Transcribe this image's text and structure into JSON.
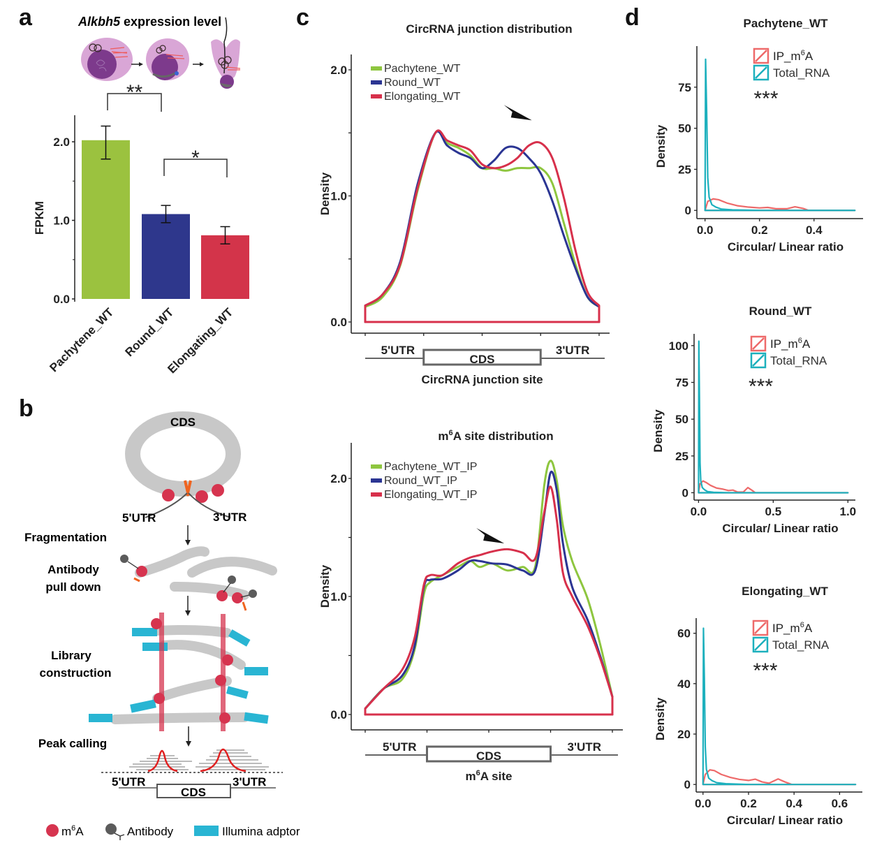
{
  "panels": {
    "a": {
      "label": "a",
      "title_italic": "Alkbh5",
      "title_rest": " expression level",
      "ylabel": "FPKM",
      "yticks": [
        "0.0",
        "1.0",
        "2.0"
      ],
      "significance": [
        {
          "from": 0,
          "to": 1,
          "mark": "**"
        },
        {
          "from": 1,
          "to": 2,
          "mark": "*"
        }
      ]
    },
    "b": {
      "label": "b",
      "circle_label": "CDS",
      "utr5": "5'UTR",
      "utr3": "3'UTR",
      "steps": [
        "Fragmentation",
        "Antibody",
        "pull down",
        "Library",
        "construction",
        "Peak calling"
      ],
      "bottom_utr5": "5'UTR",
      "bottom_cds": "CDS",
      "bottom_utr3": "3'UTR",
      "legend": {
        "m6a_prefix": "m",
        "m6a_sup": "6",
        "m6a_suffix": "A",
        "antibody": "Antibody",
        "adaptor": "Illumina adptor"
      },
      "colors": {
        "m6a": "#d6344f",
        "antibody": "#5b5b5b",
        "adaptor": "#29b5d3",
        "rna": "#c8c8c8",
        "peak": "#e02020"
      }
    },
    "c": {
      "label": "c"
    },
    "d": {
      "label": "d",
      "significance_mark": "***"
    }
  },
  "chart_data": [
    {
      "id": "a",
      "type": "bar",
      "title": "Alkbh5 expression level",
      "categories": [
        "Pachytene_WT",
        "Round_WT",
        "Elongating_WT"
      ],
      "values": [
        2.02,
        1.08,
        0.81
      ],
      "errors": [
        [
          1.78,
          2.2
        ],
        [
          0.97,
          1.19
        ],
        [
          0.7,
          0.92
        ]
      ],
      "colors": [
        "#9bc23f",
        "#2e378c",
        "#d3344a"
      ],
      "xlabel": "",
      "ylabel": "FPKM",
      "ylim": [
        0,
        2.3
      ],
      "yticks": [
        0,
        1,
        2
      ]
    },
    {
      "id": "c-top",
      "type": "line",
      "title": "CircRNA junction distribution",
      "xlabel": "CircRNA junction site",
      "ylabel": "Density",
      "ylim": [
        0,
        2.1
      ],
      "yticks": [
        0.0,
        0.5,
        1.0,
        1.5,
        2.0
      ],
      "ytick_labels": [
        "0.0",
        "",
        "1.0",
        "",
        "2.0"
      ],
      "xlim": [
        0,
        4
      ],
      "regions": {
        "utr5": "5'UTR",
        "cds": "CDS",
        "utr3": "3'UTR"
      },
      "arrow_at": [
        2.85,
        1.6
      ],
      "legend_position": "top-left",
      "x": [
        0,
        0.3,
        0.6,
        0.9,
        1.2,
        1.4,
        1.6,
        1.8,
        2.0,
        2.2,
        2.4,
        2.6,
        2.8,
        3.0,
        3.2,
        3.4,
        3.6,
        3.8,
        4.0
      ],
      "series": [
        {
          "name": "Pachytene_WT",
          "color": "#8ec63f",
          "values": [
            0.12,
            0.2,
            0.45,
            1.05,
            1.5,
            1.42,
            1.38,
            1.32,
            1.22,
            1.22,
            1.2,
            1.22,
            1.22,
            1.22,
            1.1,
            0.78,
            0.45,
            0.2,
            0.12
          ]
        },
        {
          "name": "Round_WT",
          "color": "#2b3593",
          "values": [
            0.13,
            0.22,
            0.48,
            1.1,
            1.5,
            1.4,
            1.34,
            1.3,
            1.22,
            1.28,
            1.38,
            1.38,
            1.3,
            1.18,
            0.96,
            0.68,
            0.42,
            0.2,
            0.12
          ]
        },
        {
          "name": "Elongating_WT",
          "color": "#d7304b",
          "values": [
            0.13,
            0.22,
            0.46,
            1.07,
            1.5,
            1.44,
            1.4,
            1.36,
            1.25,
            1.22,
            1.24,
            1.3,
            1.4,
            1.42,
            1.3,
            0.98,
            0.56,
            0.24,
            0.13
          ]
        }
      ]
    },
    {
      "id": "c-bottom",
      "type": "line",
      "title": "m6A site distribution",
      "title_prefix": "m",
      "title_sup": "6",
      "title_suffix": "A site distribution",
      "xlabel": "m6A site",
      "xlabel_prefix": "m",
      "xlabel_sup": "6",
      "xlabel_suffix": "A site",
      "ylabel": "Density",
      "ylim": [
        0,
        2.2
      ],
      "yticks": [
        0.0,
        0.5,
        1.0,
        1.5,
        2.0
      ],
      "ytick_labels": [
        "0.0",
        "",
        "1.0",
        "",
        "2.0"
      ],
      "xlim": [
        0,
        4
      ],
      "regions": {
        "utr5": "5'UTR",
        "cds": "CDS",
        "utr3": "3'UTR"
      },
      "arrow_at": [
        2.25,
        1.45
      ],
      "legend_position": "top-left",
      "x": [
        0,
        0.3,
        0.6,
        0.8,
        0.95,
        1.05,
        1.25,
        1.5,
        1.7,
        1.85,
        2.05,
        2.3,
        2.55,
        2.75,
        2.9,
        3.0,
        3.1,
        3.2,
        3.35,
        3.6,
        3.8,
        4.0
      ],
      "series": [
        {
          "name": "Pachytene_WT_IP",
          "color": "#8ec63f",
          "values": [
            0.05,
            0.22,
            0.3,
            0.55,
            1.02,
            1.12,
            1.18,
            1.25,
            1.3,
            1.25,
            1.28,
            1.22,
            1.25,
            1.25,
            1.95,
            2.15,
            1.98,
            1.6,
            1.3,
            0.98,
            0.6,
            0.15
          ]
        },
        {
          "name": "Round_WT_IP",
          "color": "#2b3593",
          "values": [
            0.05,
            0.22,
            0.33,
            0.58,
            1.08,
            1.14,
            1.15,
            1.22,
            1.3,
            1.3,
            1.28,
            1.27,
            1.22,
            1.22,
            1.7,
            2.05,
            1.9,
            1.45,
            1.08,
            0.8,
            0.5,
            0.15
          ]
        },
        {
          "name": "Elongating_WT_IP",
          "color": "#d7304b",
          "values": [
            0.05,
            0.22,
            0.38,
            0.65,
            1.1,
            1.18,
            1.18,
            1.28,
            1.33,
            1.35,
            1.38,
            1.4,
            1.37,
            1.32,
            1.72,
            1.93,
            1.65,
            1.2,
            1.0,
            0.75,
            0.48,
            0.15
          ]
        }
      ]
    },
    {
      "id": "d-pachytene",
      "type": "line",
      "title": "Pachytene_WT",
      "xlabel": "Circular/ Linear ratio",
      "ylabel": "Density",
      "xlim": [
        -0.03,
        0.58
      ],
      "ylim": [
        -5,
        100
      ],
      "xticks": [
        0.0,
        0.2,
        0.4
      ],
      "xtick_labels": [
        "0.0",
        "0.2",
        "0.4"
      ],
      "yticks": [
        0,
        25,
        50,
        75
      ],
      "ytick_labels": [
        "0",
        "25",
        "50",
        "75"
      ],
      "legend_position": "top-right",
      "significance": "***",
      "series": [
        {
          "name": "IP_m6A",
          "legend_prefix": "IP_m",
          "legend_sup": "6",
          "legend_suffix": "A",
          "color": "#ee6a6a",
          "x": [
            0.0,
            0.01,
            0.03,
            0.05,
            0.08,
            0.12,
            0.16,
            0.2,
            0.23,
            0.26,
            0.3,
            0.33,
            0.36,
            0.38,
            0.55
          ],
          "y": [
            0,
            5.5,
            7,
            6.5,
            4.5,
            2.8,
            2.0,
            1.5,
            1.8,
            1.0,
            1.0,
            2.2,
            1.2,
            0,
            0
          ]
        },
        {
          "name": "Total_RNA",
          "color": "#1cb0bd",
          "x": [
            0.0,
            0.002,
            0.006,
            0.01,
            0.015,
            0.025,
            0.04,
            0.06,
            0.1,
            0.2,
            0.55
          ],
          "y": [
            0,
            92,
            60,
            20,
            8,
            3.5,
            2,
            0.8,
            0.3,
            0,
            0
          ]
        }
      ]
    },
    {
      "id": "d-round",
      "type": "line",
      "title": "Round_WT",
      "xlabel": "Circular/ Linear ratio",
      "ylabel": "Density",
      "xlim": [
        -0.03,
        1.05
      ],
      "ylim": [
        -5,
        108
      ],
      "xticks": [
        0.0,
        0.5,
        1.0
      ],
      "xtick_labels": [
        "0.0",
        "0.5",
        "1.0"
      ],
      "yticks": [
        0,
        25,
        50,
        75,
        100
      ],
      "ytick_labels": [
        "0",
        "25",
        "50",
        "75",
        "100"
      ],
      "legend_position": "top-right",
      "significance": "***",
      "series": [
        {
          "name": "IP_m6A",
          "legend_prefix": "IP_m",
          "legend_sup": "6",
          "legend_suffix": "A",
          "color": "#ee6a6a",
          "x": [
            0.0,
            0.01,
            0.03,
            0.05,
            0.08,
            0.12,
            0.16,
            0.2,
            0.23,
            0.26,
            0.3,
            0.33,
            0.36,
            0.38,
            1.0
          ],
          "y": [
            0,
            6,
            8,
            7,
            5,
            3.2,
            2.5,
            1.5,
            1.8,
            0.5,
            0.5,
            3.5,
            1.5,
            0,
            0
          ]
        },
        {
          "name": "Total_RNA",
          "color": "#1cb0bd",
          "x": [
            0.0,
            0.002,
            0.006,
            0.01,
            0.015,
            0.025,
            0.04,
            0.06,
            0.1,
            0.2,
            1.0
          ],
          "y": [
            0,
            103,
            65,
            20,
            8,
            3.5,
            2,
            0.8,
            0.3,
            0,
            0
          ]
        }
      ]
    },
    {
      "id": "d-elongating",
      "type": "line",
      "title": "Elongating_WT",
      "xlabel": "Circular/ Linear ratio",
      "ylabel": "Density",
      "xlim": [
        -0.03,
        0.7
      ],
      "ylim": [
        -3,
        66
      ],
      "xticks": [
        0.0,
        0.2,
        0.4,
        0.6
      ],
      "xtick_labels": [
        "0.0",
        "0.2",
        "0.4",
        "0.6"
      ],
      "yticks": [
        0,
        20,
        40,
        60
      ],
      "ytick_labels": [
        "0",
        "20",
        "40",
        "60"
      ],
      "legend_position": "top-right",
      "significance": "***",
      "series": [
        {
          "name": "IP_m6A",
          "legend_prefix": "IP_m",
          "legend_sup": "6",
          "legend_suffix": "A",
          "color": "#ee6a6a",
          "x": [
            0.0,
            0.01,
            0.03,
            0.05,
            0.08,
            0.12,
            0.16,
            0.2,
            0.23,
            0.26,
            0.29,
            0.33,
            0.36,
            0.39,
            0.67
          ],
          "y": [
            0,
            4,
            5.8,
            5.5,
            4,
            2.8,
            2.0,
            1.6,
            2.1,
            1.0,
            0.5,
            2.2,
            1.0,
            0,
            0
          ]
        },
        {
          "name": "Total_RNA",
          "color": "#1cb0bd",
          "x": [
            0.0,
            0.002,
            0.006,
            0.01,
            0.015,
            0.025,
            0.04,
            0.06,
            0.1,
            0.2,
            0.67
          ],
          "y": [
            0,
            62,
            42,
            15,
            6,
            2.5,
            1.5,
            0.7,
            0.3,
            0,
            0
          ]
        }
      ]
    }
  ]
}
